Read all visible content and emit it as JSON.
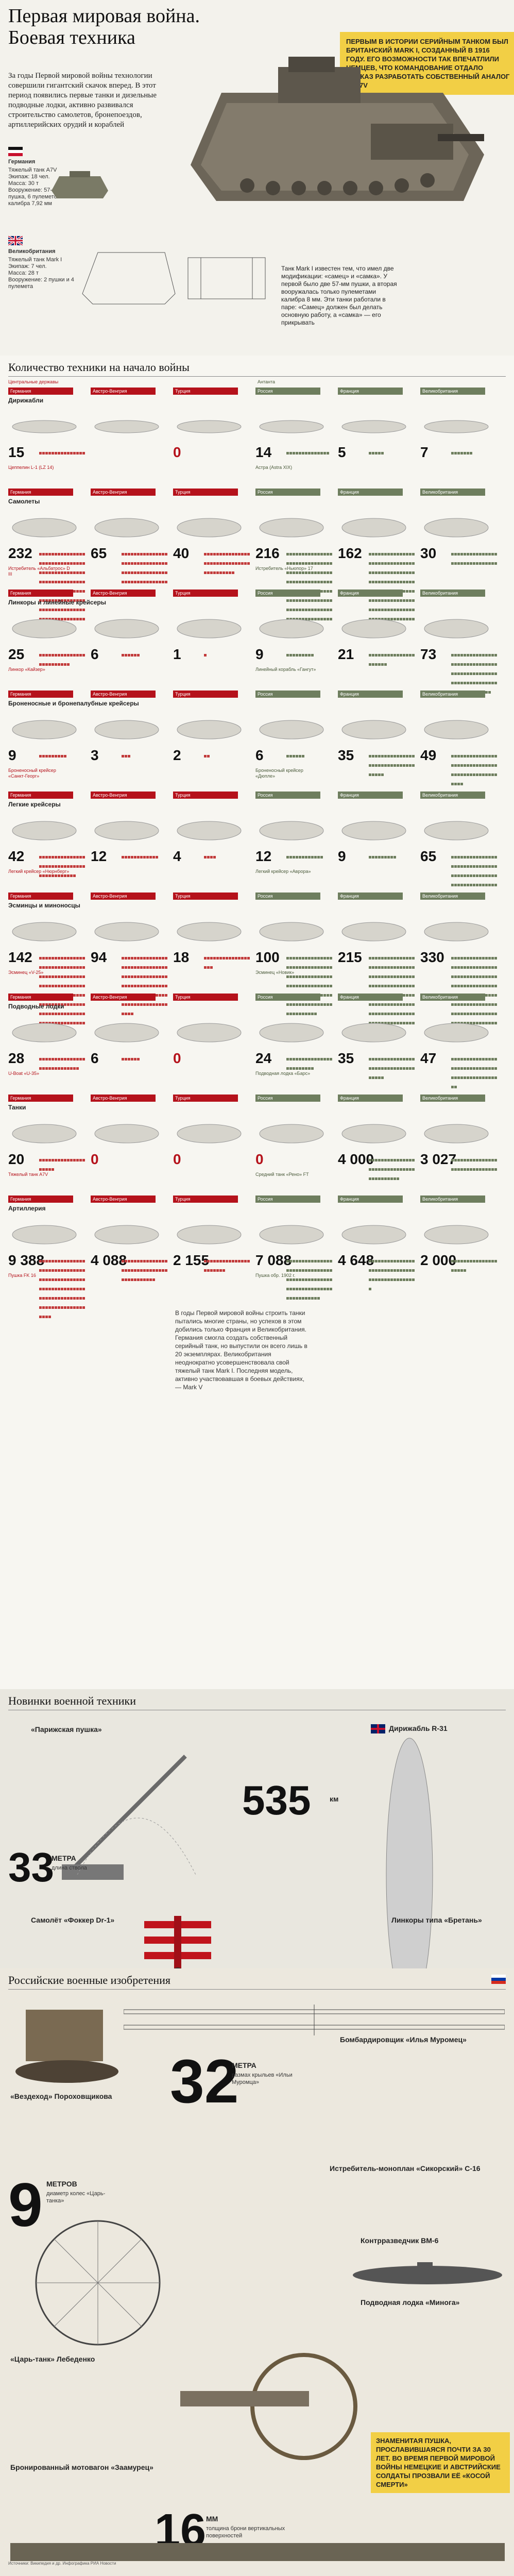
{
  "header": {
    "title_line1": "Первая мировая война.",
    "title_line2": "Боевая техника",
    "lead": "За годы Первой мировой войны технологии совершили гигантский скачок вперед. В этот период появились первые танки и дизельные подводные лодки, активно развивался строительство самолетов, бронепоездов, артиллерийских орудий и кораблей",
    "note": "Первым в истории серийным танком был британский Mark I, созданный в 1916 году. Его возможности так впечатлили немцев, что командование отдало приказ разработать собственный аналог — A7V",
    "germany_label": "Германия",
    "a7v_spec": "Тяжелый танк A7V\nЭкипаж: 18 чел.\nМасса: 30 т\nВооружение: 57-мм пушка, 6 пулеметов калибра 7,92 мм",
    "britain_label": "Великобритания",
    "mk1_spec": "Тяжелый танк Mark I\nЭкипаж: 7 чел.\nМасса: 28 т\nВооружение: 2 пушки и 4 пулемета",
    "mk1_desc": "Танк Mark I известен тем, что имел две модификации: «самец» и «самка». У первой было две 57-мм пушки, а вторая вооружалась только пулеметами калибра 8 мм. Эти танки работали в паре: «Самец» должен был делать основную работу, а «самка» — его прикрывать"
  },
  "quantity": {
    "heading": "Количество техники на начало войны",
    "central_label": "Центральные державы",
    "entente_label": "Антанта",
    "countries": [
      "Германия",
      "Австро-Венгрия",
      "Турция",
      "Россия",
      "Франция",
      "Великобритания"
    ],
    "rows": [
      {
        "name": "Дирижабли",
        "values": [
          "15",
          "",
          "0",
          "14",
          "5",
          "7"
        ],
        "note_left": "Цеппелин L-1 (LZ 14)",
        "note_right": "Астра (Astra XIX)"
      },
      {
        "name": "Самолеты",
        "values": [
          "232",
          "65",
          "40",
          "216",
          "162",
          "30"
        ],
        "note_left": "Истребитель «Альбатрос» D III",
        "note_right": "Истребитель «Ньюпор» 17"
      },
      {
        "name": "Линкоры и линейные крейсеры",
        "values": [
          "25",
          "6",
          "1",
          "9",
          "21",
          "73"
        ],
        "note_left": "Линкор «Кайзер»",
        "note_right": "Линейный корабль «Гангут»"
      },
      {
        "name": "Броненосные и бронепалубные крейсеры",
        "values": [
          "9",
          "3",
          "2",
          "6",
          "35",
          "49"
        ],
        "note_left": "Броненосный крейсер «Санкт-Георг»",
        "note_right": "Броненосный крейсер «Дюпле»"
      },
      {
        "name": "Легкие крейсеры",
        "values": [
          "42",
          "12",
          "4",
          "12",
          "9",
          "65"
        ],
        "note_left": "Легкий крейсер «Нюрнберг»",
        "note_right": "Легкий крейсер «Аврора»"
      },
      {
        "name": "Эсминцы и миноносцы",
        "values": [
          "142",
          "94",
          "18",
          "100",
          "215",
          "330"
        ],
        "note_left": "Эсминец «V-25»",
        "note_right": "Эсминец «Новик»"
      },
      {
        "name": "Подводные лодки",
        "values": [
          "28",
          "6",
          "0",
          "24",
          "35",
          "47"
        ],
        "note_left": "U-Boat «U-35»",
        "note_right": "Подводная лодка «Барс»"
      },
      {
        "name": "Танки",
        "values": [
          "20",
          "0",
          "0",
          "0",
          "4 000",
          "3 027"
        ],
        "note_left": "Тяжелый танк A7V",
        "note_right": "Средний танк «Рено» FT"
      },
      {
        "name": "Артиллерия",
        "values": [
          "9 388",
          "4 088",
          "2 155",
          "7 088",
          "4 648",
          "2 000"
        ],
        "note_left": "Пушка FK 16",
        "note_right": "Пушка обр. 1902 г."
      }
    ],
    "tank_note": "В годы Первой мировой войны строить танки пытались многие страны, но успехов в этом добились только Франция и Великобритания. Германия смогла создать собственный серийный танк, но выпустили он всего лишь в 20 экземплярах. Великобритания неоднократно усовершенствовала свой тяжелый танк Mark I. Последняя модель, активно участвовавшая в боевых действиях, — Mark V"
  },
  "novelties": {
    "heading": "Новинки военной техники",
    "parisgun_title": "«Парижская пушка»",
    "parisgun_big": "33",
    "parisgun_unit": "МЕТРА",
    "parisgun_caption": "длина ствола",
    "airship_title": "Дирижабль R-31",
    "airship_big": "535",
    "airship_unit": "км",
    "fokker_title": "Самолёт «Фоккер Dr-1»",
    "britain_ship_title": "Линкоры типа «Бретань»"
  },
  "russia": {
    "heading": "Российские военные изобретения",
    "tank_title": "«Вездеход» Пороховщикова",
    "ilya_big": "32",
    "ilya_unit": "МЕТРА",
    "ilya_caption": "размах крыльев «Ильи Муромца»",
    "ilya_title": "Бомбардировщик «Илья Муромец»",
    "tsar_big": "9",
    "tsar_unit": "МЕТРОВ",
    "tsar_caption": "диаметр колес «Царь-танка»",
    "tsar_title": "«Царь-танк» Лебеденко",
    "fighter_title": "Истребитель-моноплан «Сикорский» С-16",
    "kontr_title": "Контрразведчик ВМ-6",
    "sub_title": "Подводная лодка «Минога»",
    "train_title": "Бронированный мотовагон «Заамурец»",
    "gun_note": "Знаменитая пушка, прославившаяся почти за 30 лет. Во время Первой мировой войны немецкие и австрийские солдаты прозвали её «косой смерти»",
    "bottom_big": "16",
    "bottom_unit": "ММ",
    "bottom_caption": "толщина брони вертикальных поверхностей"
  },
  "footer": "Источники: Википедия и др. Инфографика РИА Новости"
}
